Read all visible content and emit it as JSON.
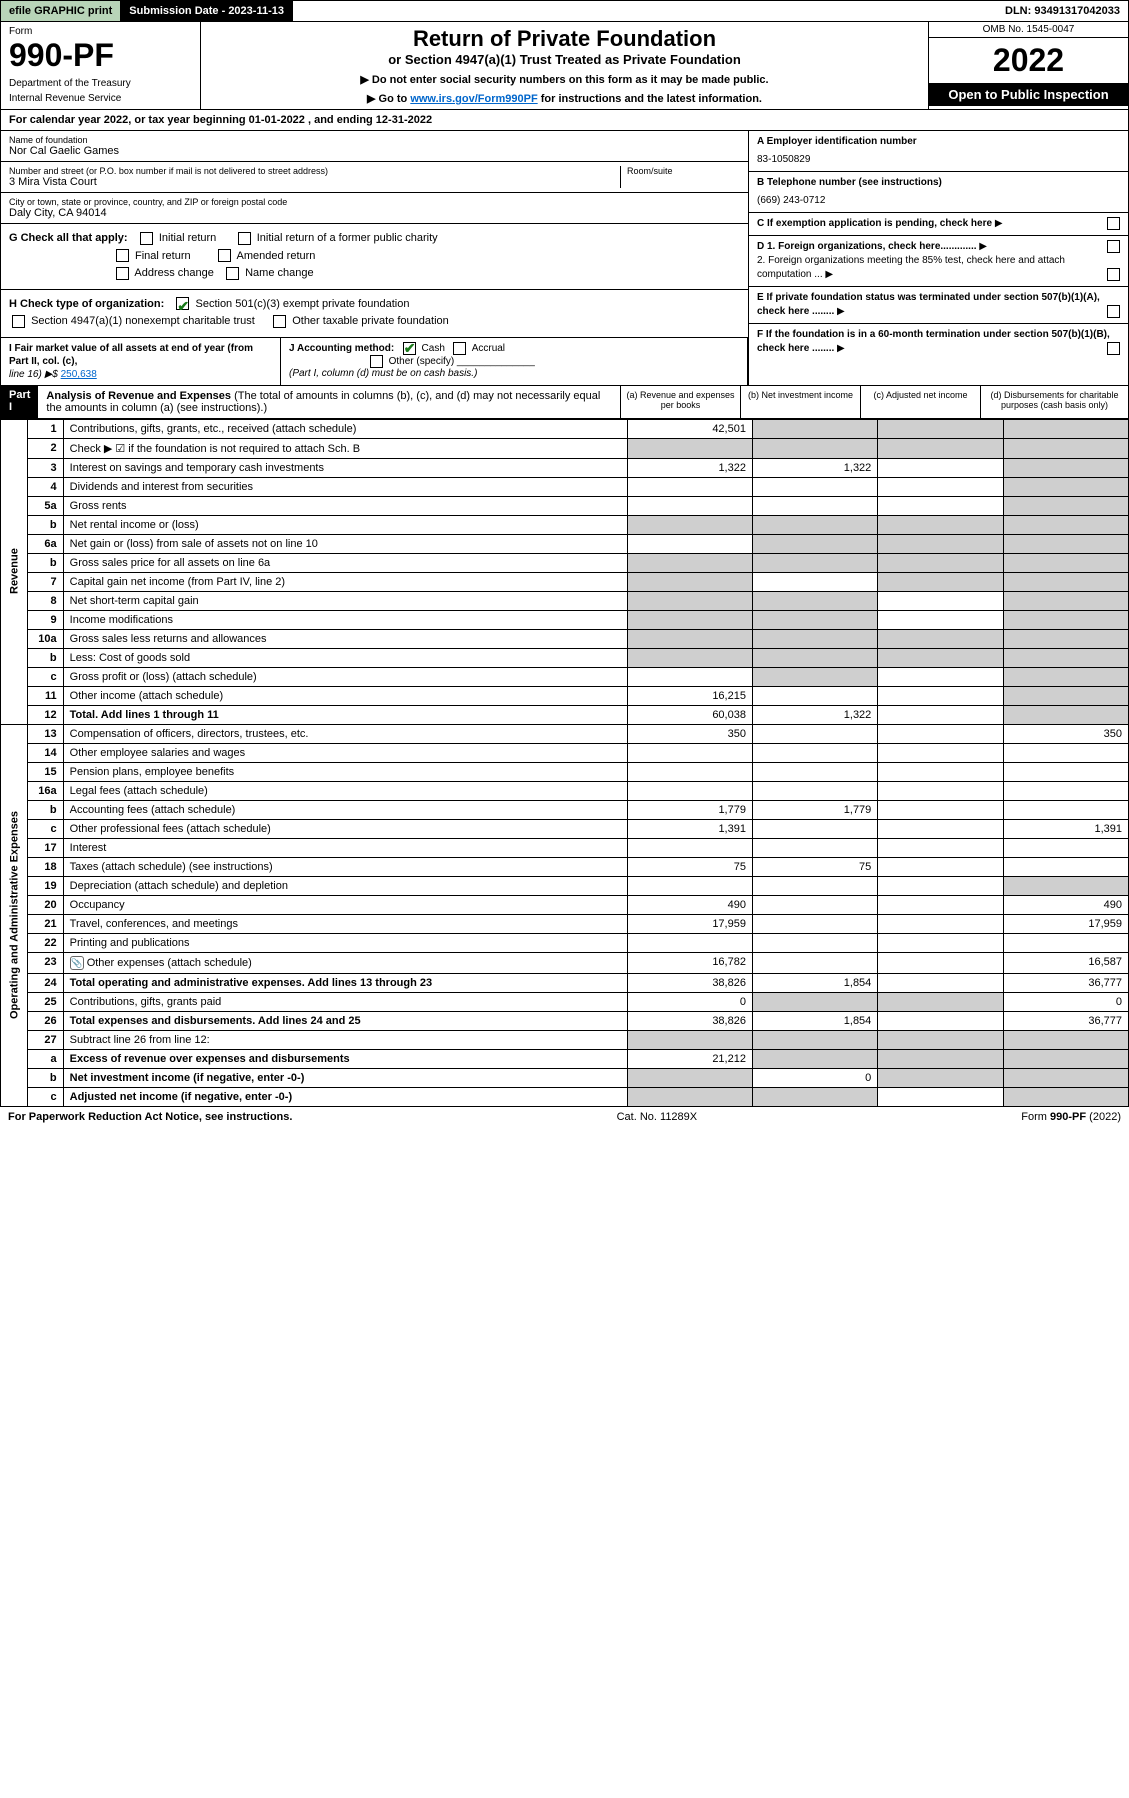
{
  "topbar": {
    "efile": "efile GRAPHIC print",
    "subdate_label": "Submission Date - 2023-11-13",
    "dln": "DLN: 93491317042033"
  },
  "header": {
    "form_word": "Form",
    "form_num": "990-PF",
    "dept1": "Department of the Treasury",
    "dept2": "Internal Revenue Service",
    "title": "Return of Private Foundation",
    "subtitle": "or Section 4947(a)(1) Trust Treated as Private Foundation",
    "inst1": "▶ Do not enter social security numbers on this form as it may be made public.",
    "inst2_pre": "▶ Go to ",
    "inst2_link": "www.irs.gov/Form990PF",
    "inst2_post": " for instructions and the latest information.",
    "omb": "OMB No. 1545-0047",
    "year": "2022",
    "open": "Open to Public Inspection"
  },
  "cal": "For calendar year 2022, or tax year beginning 01-01-2022                  , and ending 12-31-2022",
  "info": {
    "name_lbl": "Name of foundation",
    "name": "Nor Cal Gaelic Games",
    "addr_lbl": "Number and street (or P.O. box number if mail is not delivered to street address)",
    "addr": "3 Mira Vista Court",
    "room_lbl": "Room/suite",
    "city_lbl": "City or town, state or province, country, and ZIP or foreign postal code",
    "city": "Daly City, CA  94014",
    "ein_lbl": "A Employer identification number",
    "ein": "83-1050829",
    "phone_lbl": "B Telephone number (see instructions)",
    "phone": "(669) 243-0712",
    "c_lbl": "C If exemption application is pending, check here",
    "d1": "D 1. Foreign organizations, check here.............",
    "d2": "2. Foreign organizations meeting the 85% test, check here and attach computation ...",
    "e_lbl": "E  If private foundation status was terminated under section 507(b)(1)(A), check here ........",
    "f_lbl": "F  If the foundation is in a 60-month termination under section 507(b)(1)(B), check here ........"
  },
  "g": {
    "lbl": "G Check all that apply:",
    "o1": "Initial return",
    "o2": "Final return",
    "o3": "Address change",
    "o4": "Initial return of a former public charity",
    "o5": "Amended return",
    "o6": "Name change"
  },
  "h": {
    "lbl": "H Check type of organization:",
    "o1": "Section 501(c)(3) exempt private foundation",
    "o2": "Section 4947(a)(1) nonexempt charitable trust",
    "o3": "Other taxable private foundation"
  },
  "i": {
    "lbl": "I Fair market value of all assets at end of year (from Part II, col. (c),",
    "line": "line 16) ▶$",
    "amt": "250,638"
  },
  "j": {
    "lbl": "J Accounting method:",
    "o1": "Cash",
    "o2": "Accrual",
    "o3": "Other (specify)",
    "note": "(Part I, column (d) must be on cash basis.)"
  },
  "part1": {
    "hdr": "Part I",
    "title": "Analysis of Revenue and Expenses",
    "note": "(The total of amounts in columns (b), (c), and (d) may not necessarily equal the amounts in column (a) (see instructions).)",
    "colA": "(a) Revenue and expenses per books",
    "colB": "(b) Net investment income",
    "colC": "(c) Adjusted net income",
    "colD": "(d) Disbursements for charitable purposes (cash basis only)"
  },
  "sidebars": {
    "rev": "Revenue",
    "exp": "Operating and Administrative Expenses"
  },
  "rows": [
    {
      "ln": "1",
      "lbl": "Contributions, gifts, grants, etc., received (attach schedule)",
      "a": "42,501",
      "b": "",
      "c": "",
      "d": "",
      "shadeB": true,
      "shadeC": true,
      "shadeD": true
    },
    {
      "ln": "2",
      "lbl": "Check ▶ ☑ if the foundation is not required to attach Sch. B",
      "a": "",
      "b": "",
      "c": "",
      "d": "",
      "allshade": true
    },
    {
      "ln": "3",
      "lbl": "Interest on savings and temporary cash investments",
      "a": "1,322",
      "b": "1,322",
      "c": "",
      "d": "",
      "shadeD": true
    },
    {
      "ln": "4",
      "lbl": "Dividends and interest from securities",
      "a": "",
      "b": "",
      "c": "",
      "d": "",
      "shadeD": true
    },
    {
      "ln": "5a",
      "lbl": "Gross rents",
      "a": "",
      "b": "",
      "c": "",
      "d": "",
      "shadeD": true
    },
    {
      "ln": "b",
      "lbl": "Net rental income or (loss)",
      "a": "",
      "b": "",
      "c": "",
      "d": "",
      "shadeA": true,
      "shadeB": true,
      "shadeC": true,
      "shadeD": true,
      "inset": true
    },
    {
      "ln": "6a",
      "lbl": "Net gain or (loss) from sale of assets not on line 10",
      "a": "",
      "b": "",
      "c": "",
      "d": "",
      "shadeB": true,
      "shadeC": true,
      "shadeD": true
    },
    {
      "ln": "b",
      "lbl": "Gross sales price for all assets on line 6a",
      "a": "",
      "b": "",
      "c": "",
      "d": "",
      "shadeA": true,
      "shadeB": true,
      "shadeC": true,
      "shadeD": true,
      "inset": true
    },
    {
      "ln": "7",
      "lbl": "Capital gain net income (from Part IV, line 2)",
      "a": "",
      "b": "",
      "c": "",
      "d": "",
      "shadeA": true,
      "shadeC": true,
      "shadeD": true
    },
    {
      "ln": "8",
      "lbl": "Net short-term capital gain",
      "a": "",
      "b": "",
      "c": "",
      "d": "",
      "shadeA": true,
      "shadeB": true,
      "shadeD": true
    },
    {
      "ln": "9",
      "lbl": "Income modifications",
      "a": "",
      "b": "",
      "c": "",
      "d": "",
      "shadeA": true,
      "shadeB": true,
      "shadeD": true
    },
    {
      "ln": "10a",
      "lbl": "Gross sales less returns and allowances",
      "a": "",
      "b": "",
      "c": "",
      "d": "",
      "shadeA": true,
      "shadeB": true,
      "shadeC": true,
      "shadeD": true,
      "inset": true
    },
    {
      "ln": "b",
      "lbl": "Less: Cost of goods sold",
      "a": "",
      "b": "",
      "c": "",
      "d": "",
      "shadeA": true,
      "shadeB": true,
      "shadeC": true,
      "shadeD": true,
      "inset": true
    },
    {
      "ln": "c",
      "lbl": "Gross profit or (loss) (attach schedule)",
      "a": "",
      "b": "",
      "c": "",
      "d": "",
      "shadeB": true,
      "shadeD": true
    },
    {
      "ln": "11",
      "lbl": "Other income (attach schedule)",
      "a": "16,215",
      "b": "",
      "c": "",
      "d": "",
      "shadeD": true
    },
    {
      "ln": "12",
      "lbl": "Total. Add lines 1 through 11",
      "a": "60,038",
      "b": "1,322",
      "c": "",
      "d": "",
      "bold": true,
      "shadeD": true
    },
    {
      "ln": "13",
      "lbl": "Compensation of officers, directors, trustees, etc.",
      "a": "350",
      "b": "",
      "c": "",
      "d": "350"
    },
    {
      "ln": "14",
      "lbl": "Other employee salaries and wages",
      "a": "",
      "b": "",
      "c": "",
      "d": ""
    },
    {
      "ln": "15",
      "lbl": "Pension plans, employee benefits",
      "a": "",
      "b": "",
      "c": "",
      "d": ""
    },
    {
      "ln": "16a",
      "lbl": "Legal fees (attach schedule)",
      "a": "",
      "b": "",
      "c": "",
      "d": ""
    },
    {
      "ln": "b",
      "lbl": "Accounting fees (attach schedule)",
      "a": "1,779",
      "b": "1,779",
      "c": "",
      "d": ""
    },
    {
      "ln": "c",
      "lbl": "Other professional fees (attach schedule)",
      "a": "1,391",
      "b": "",
      "c": "",
      "d": "1,391"
    },
    {
      "ln": "17",
      "lbl": "Interest",
      "a": "",
      "b": "",
      "c": "",
      "d": ""
    },
    {
      "ln": "18",
      "lbl": "Taxes (attach schedule) (see instructions)",
      "a": "75",
      "b": "75",
      "c": "",
      "d": ""
    },
    {
      "ln": "19",
      "lbl": "Depreciation (attach schedule) and depletion",
      "a": "",
      "b": "",
      "c": "",
      "d": "",
      "shadeD": true
    },
    {
      "ln": "20",
      "lbl": "Occupancy",
      "a": "490",
      "b": "",
      "c": "",
      "d": "490"
    },
    {
      "ln": "21",
      "lbl": "Travel, conferences, and meetings",
      "a": "17,959",
      "b": "",
      "c": "",
      "d": "17,959"
    },
    {
      "ln": "22",
      "lbl": "Printing and publications",
      "a": "",
      "b": "",
      "c": "",
      "d": ""
    },
    {
      "ln": "23",
      "lbl": "Other expenses (attach schedule)",
      "a": "16,782",
      "b": "",
      "c": "",
      "d": "16,587",
      "attach": true
    },
    {
      "ln": "24",
      "lbl": "Total operating and administrative expenses. Add lines 13 through 23",
      "a": "38,826",
      "b": "1,854",
      "c": "",
      "d": "36,777",
      "bold": true
    },
    {
      "ln": "25",
      "lbl": "Contributions, gifts, grants paid",
      "a": "0",
      "b": "",
      "c": "",
      "d": "0",
      "shadeB": true,
      "shadeC": true
    },
    {
      "ln": "26",
      "lbl": "Total expenses and disbursements. Add lines 24 and 25",
      "a": "38,826",
      "b": "1,854",
      "c": "",
      "d": "36,777",
      "bold": true
    },
    {
      "ln": "27",
      "lbl": "Subtract line 26 from line 12:",
      "a": "",
      "b": "",
      "c": "",
      "d": "",
      "shadeA": true,
      "shadeB": true,
      "shadeC": true,
      "shadeD": true
    },
    {
      "ln": "a",
      "lbl": "Excess of revenue over expenses and disbursements",
      "a": "21,212",
      "b": "",
      "c": "",
      "d": "",
      "bold": true,
      "shadeB": true,
      "shadeC": true,
      "shadeD": true
    },
    {
      "ln": "b",
      "lbl": "Net investment income (if negative, enter -0-)",
      "a": "",
      "b": "0",
      "c": "",
      "d": "",
      "bold": true,
      "shadeA": true,
      "shadeC": true,
      "shadeD": true
    },
    {
      "ln": "c",
      "lbl": "Adjusted net income (if negative, enter -0-)",
      "a": "",
      "b": "",
      "c": "",
      "d": "",
      "bold": true,
      "shadeA": true,
      "shadeB": true,
      "shadeD": true
    }
  ],
  "footer": {
    "left": "For Paperwork Reduction Act Notice, see instructions.",
    "mid": "Cat. No. 11289X",
    "right": "Form 990-PF (2022)"
  }
}
